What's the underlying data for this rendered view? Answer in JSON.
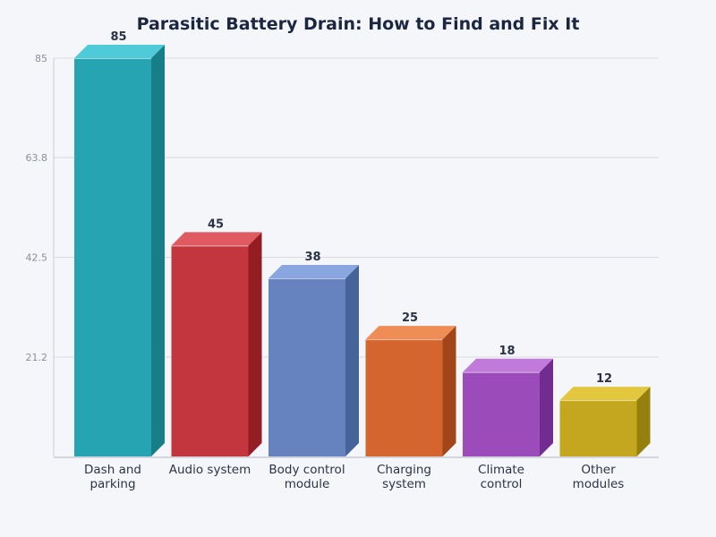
{
  "title": "Parasitic Battery Drain: How to Find and Fix It",
  "chart_data": {
    "type": "bar",
    "title": "Parasitic Battery Drain: How to Find and Fix It",
    "xlabel": "",
    "ylabel": "",
    "categories": [
      "Dash and parking",
      "Audio system",
      "Body control module",
      "Charging system",
      "Climate control",
      "Other modules"
    ],
    "category_lines": [
      [
        "Dash and",
        "parking"
      ],
      [
        "Audio system"
      ],
      [
        "Body control",
        "module"
      ],
      [
        "Charging",
        "system"
      ],
      [
        "Climate",
        "control"
      ],
      [
        "Other",
        "modules"
      ]
    ],
    "values": [
      85,
      45,
      38,
      25,
      18,
      12
    ],
    "value_labels": [
      "85",
      "45",
      "38",
      "25",
      "18",
      "12"
    ],
    "ylim": [
      0,
      85
    ],
    "yticks": [
      21.2,
      42.5,
      63.8,
      85
    ],
    "ytick_labels": [
      "21.2",
      "42.5",
      "63.8",
      "85"
    ],
    "grid": true,
    "legend": "none",
    "style": "3d-bar",
    "colors": [
      {
        "front": "#27a4b2",
        "top": "#4ecad8",
        "side": "#177e88"
      },
      {
        "front": "#c4363e",
        "top": "#e05a62",
        "side": "#941d23"
      },
      {
        "front": "#6783bf",
        "top": "#8aa6e0",
        "side": "#47649a"
      },
      {
        "front": "#d4652e",
        "top": "#f08c55",
        "side": "#a2461a"
      },
      {
        "front": "#9b4cba",
        "top": "#c07ad9",
        "side": "#722c90"
      },
      {
        "front": "#c4a71e",
        "top": "#e3c83f",
        "side": "#95800c"
      }
    ]
  }
}
